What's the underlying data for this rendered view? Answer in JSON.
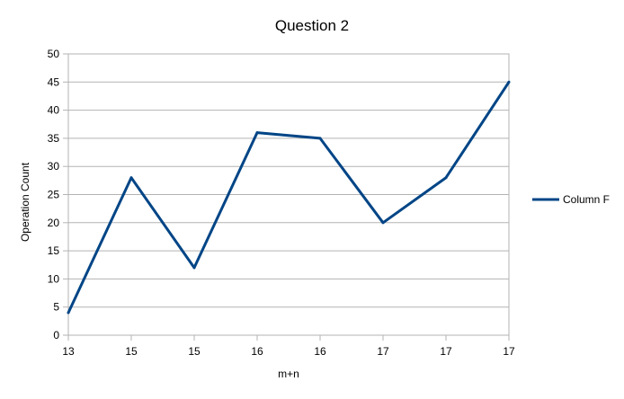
{
  "chart_data": {
    "type": "line",
    "title": "Question 2",
    "xlabel": "m+n",
    "ylabel": "Operation Count",
    "categories": [
      "13",
      "15",
      "15",
      "16",
      "16",
      "17",
      "17",
      "17"
    ],
    "series": [
      {
        "name": "Column F",
        "values": [
          4,
          28,
          12,
          36,
          35,
          20,
          28,
          45
        ],
        "color": "#004586"
      }
    ],
    "ylim": [
      0,
      50
    ],
    "yticks": [
      0,
      5,
      10,
      15,
      20,
      25,
      30,
      35,
      40,
      45,
      50
    ],
    "grid": true,
    "legend": "right"
  }
}
